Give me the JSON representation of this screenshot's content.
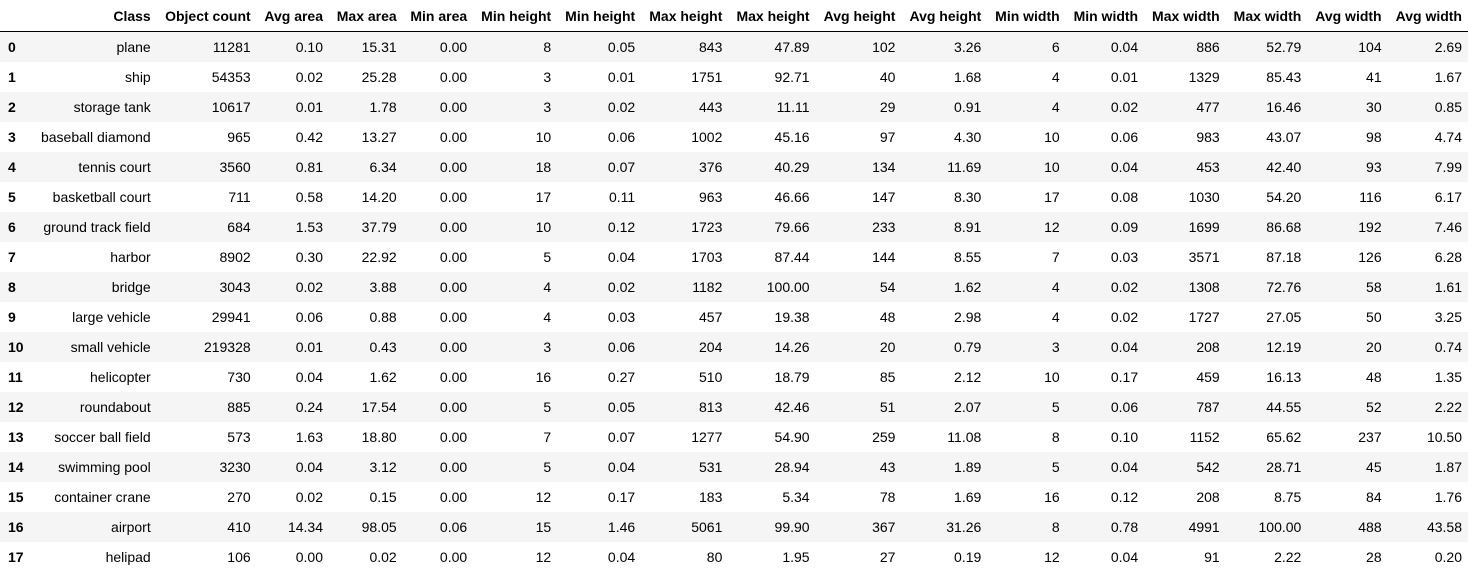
{
  "table": {
    "index_header": "",
    "columns": [
      "Class",
      "Object count",
      "Avg area",
      "Max area",
      "Min area",
      "Min height",
      "Min height",
      "Max height",
      "Max height",
      "Avg height",
      "Avg height",
      "Min width",
      "Min width",
      "Max width",
      "Max width",
      "Avg width",
      "Avg width"
    ],
    "rows": [
      {
        "index": "0",
        "cells": [
          "plane",
          "11281",
          "0.10",
          "15.31",
          "0.00",
          "8",
          "0.05",
          "843",
          "47.89",
          "102",
          "3.26",
          "6",
          "0.04",
          "886",
          "52.79",
          "104",
          "2.69"
        ]
      },
      {
        "index": "1",
        "cells": [
          "ship",
          "54353",
          "0.02",
          "25.28",
          "0.00",
          "3",
          "0.01",
          "1751",
          "92.71",
          "40",
          "1.68",
          "4",
          "0.01",
          "1329",
          "85.43",
          "41",
          "1.67"
        ]
      },
      {
        "index": "2",
        "cells": [
          "storage tank",
          "10617",
          "0.01",
          "1.78",
          "0.00",
          "3",
          "0.02",
          "443",
          "11.11",
          "29",
          "0.91",
          "4",
          "0.02",
          "477",
          "16.46",
          "30",
          "0.85"
        ]
      },
      {
        "index": "3",
        "cells": [
          "baseball diamond",
          "965",
          "0.42",
          "13.27",
          "0.00",
          "10",
          "0.06",
          "1002",
          "45.16",
          "97",
          "4.30",
          "10",
          "0.06",
          "983",
          "43.07",
          "98",
          "4.74"
        ]
      },
      {
        "index": "4",
        "cells": [
          "tennis court",
          "3560",
          "0.81",
          "6.34",
          "0.00",
          "18",
          "0.07",
          "376",
          "40.29",
          "134",
          "11.69",
          "10",
          "0.04",
          "453",
          "42.40",
          "93",
          "7.99"
        ]
      },
      {
        "index": "5",
        "cells": [
          "basketball court",
          "711",
          "0.58",
          "14.20",
          "0.00",
          "17",
          "0.11",
          "963",
          "46.66",
          "147",
          "8.30",
          "17",
          "0.08",
          "1030",
          "54.20",
          "116",
          "6.17"
        ]
      },
      {
        "index": "6",
        "cells": [
          "ground track field",
          "684",
          "1.53",
          "37.79",
          "0.00",
          "10",
          "0.12",
          "1723",
          "79.66",
          "233",
          "8.91",
          "12",
          "0.09",
          "1699",
          "86.68",
          "192",
          "7.46"
        ]
      },
      {
        "index": "7",
        "cells": [
          "harbor",
          "8902",
          "0.30",
          "22.92",
          "0.00",
          "5",
          "0.04",
          "1703",
          "87.44",
          "144",
          "8.55",
          "7",
          "0.03",
          "3571",
          "87.18",
          "126",
          "6.28"
        ]
      },
      {
        "index": "8",
        "cells": [
          "bridge",
          "3043",
          "0.02",
          "3.88",
          "0.00",
          "4",
          "0.02",
          "1182",
          "100.00",
          "54",
          "1.62",
          "4",
          "0.02",
          "1308",
          "72.76",
          "58",
          "1.61"
        ]
      },
      {
        "index": "9",
        "cells": [
          "large vehicle",
          "29941",
          "0.06",
          "0.88",
          "0.00",
          "4",
          "0.03",
          "457",
          "19.38",
          "48",
          "2.98",
          "4",
          "0.02",
          "1727",
          "27.05",
          "50",
          "3.25"
        ]
      },
      {
        "index": "10",
        "cells": [
          "small vehicle",
          "219328",
          "0.01",
          "0.43",
          "0.00",
          "3",
          "0.06",
          "204",
          "14.26",
          "20",
          "0.79",
          "3",
          "0.04",
          "208",
          "12.19",
          "20",
          "0.74"
        ]
      },
      {
        "index": "11",
        "cells": [
          "helicopter",
          "730",
          "0.04",
          "1.62",
          "0.00",
          "16",
          "0.27",
          "510",
          "18.79",
          "85",
          "2.12",
          "10",
          "0.17",
          "459",
          "16.13",
          "48",
          "1.35"
        ]
      },
      {
        "index": "12",
        "cells": [
          "roundabout",
          "885",
          "0.24",
          "17.54",
          "0.00",
          "5",
          "0.05",
          "813",
          "42.46",
          "51",
          "2.07",
          "5",
          "0.06",
          "787",
          "44.55",
          "52",
          "2.22"
        ]
      },
      {
        "index": "13",
        "cells": [
          "soccer ball field",
          "573",
          "1.63",
          "18.80",
          "0.00",
          "7",
          "0.07",
          "1277",
          "54.90",
          "259",
          "11.08",
          "8",
          "0.10",
          "1152",
          "65.62",
          "237",
          "10.50"
        ]
      },
      {
        "index": "14",
        "cells": [
          "swimming pool",
          "3230",
          "0.04",
          "3.12",
          "0.00",
          "5",
          "0.04",
          "531",
          "28.94",
          "43",
          "1.89",
          "5",
          "0.04",
          "542",
          "28.71",
          "45",
          "1.87"
        ]
      },
      {
        "index": "15",
        "cells": [
          "container crane",
          "270",
          "0.02",
          "0.15",
          "0.00",
          "12",
          "0.17",
          "183",
          "5.34",
          "78",
          "1.69",
          "16",
          "0.12",
          "208",
          "8.75",
          "84",
          "1.76"
        ]
      },
      {
        "index": "16",
        "cells": [
          "airport",
          "410",
          "14.34",
          "98.05",
          "0.06",
          "15",
          "1.46",
          "5061",
          "99.90",
          "367",
          "31.26",
          "8",
          "0.78",
          "4991",
          "100.00",
          "488",
          "43.58"
        ]
      },
      {
        "index": "17",
        "cells": [
          "helipad",
          "106",
          "0.00",
          "0.02",
          "0.00",
          "12",
          "0.04",
          "80",
          "1.95",
          "27",
          "0.19",
          "12",
          "0.04",
          "91",
          "2.22",
          "28",
          "0.20"
        ]
      }
    ]
  }
}
